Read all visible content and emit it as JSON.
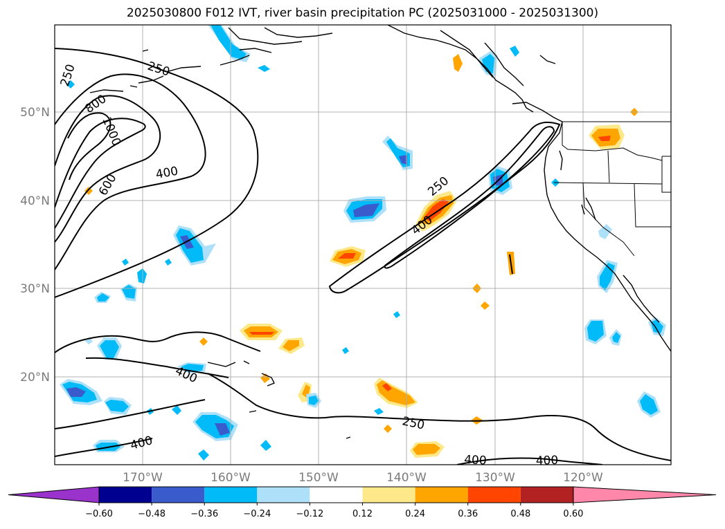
{
  "title": "2025030800 F012 IVT, river basin precipitation PC (2025031000 - 2025031300)",
  "map": {
    "lat_labels": [
      "50°N",
      "40°N",
      "30°N",
      "20°N"
    ],
    "lon_labels": [
      "170°W",
      "160°W",
      "150°W",
      "140°W",
      "130°W",
      "120°W"
    ],
    "contour_labels": [
      "250",
      "800",
      "1000",
      "600",
      "250",
      "400",
      "250",
      "400",
      "400",
      "400",
      "250",
      "400",
      "400"
    ]
  },
  "colorbar": {
    "tick_labels": [
      "−0.60",
      "−0.48",
      "−0.36",
      "−0.24",
      "−0.12",
      "0.12",
      "0.24",
      "0.36",
      "0.48",
      "0.60"
    ],
    "colors": [
      "#9933cc",
      "#000090",
      "#3a5bcc",
      "#00bbf7",
      "#aee0f9",
      "#ffffff",
      "#fde98a",
      "#ffa500",
      "#ff4500",
      "#b22222",
      "#ff88aa"
    ]
  }
}
